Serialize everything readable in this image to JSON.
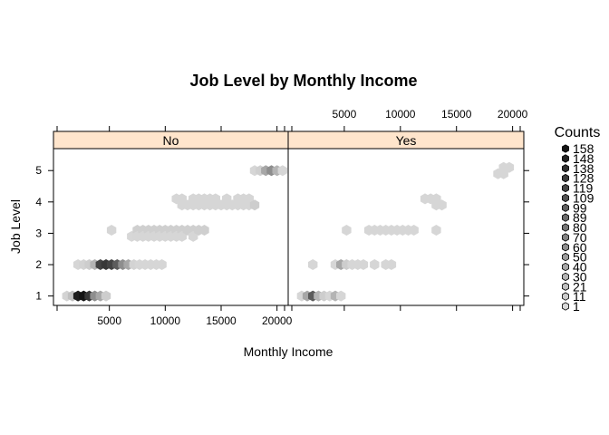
{
  "chart_data": {
    "type": "hexbin",
    "title": "Job Level by Monthly Income",
    "xlabel": "Monthly Income",
    "ylabel": "Job Level",
    "xlim": [
      0,
      21000
    ],
    "ylim": [
      0.7,
      5.7
    ],
    "x_ticks": [
      5000,
      10000,
      15000,
      20000
    ],
    "x_tick_labels": [
      "5000",
      "10000",
      "15000",
      "20000"
    ],
    "y_ticks": [
      1,
      2,
      3,
      4,
      5
    ],
    "y_tick_labels": [
      "1",
      "2",
      "3",
      "4",
      "5"
    ],
    "colors": {
      "strip_bg": "#ffe5cc",
      "strip_border": "#000000",
      "panel_border": "#000000"
    },
    "panels": [
      {
        "strip": "No",
        "cells": [
          {
            "x": 1200,
            "y": 1,
            "count": 5
          },
          {
            "x": 1700,
            "y": 1,
            "count": 20
          },
          {
            "x": 2200,
            "y": 1,
            "count": 150
          },
          {
            "x": 2700,
            "y": 1,
            "count": 158
          },
          {
            "x": 3200,
            "y": 1,
            "count": 130
          },
          {
            "x": 3700,
            "y": 1,
            "count": 60
          },
          {
            "x": 4200,
            "y": 1,
            "count": 40
          },
          {
            "x": 4700,
            "y": 1,
            "count": 10
          },
          {
            "x": 2200,
            "y": 2,
            "count": 3
          },
          {
            "x": 2700,
            "y": 2,
            "count": 5
          },
          {
            "x": 3200,
            "y": 2,
            "count": 10
          },
          {
            "x": 3700,
            "y": 2,
            "count": 30
          },
          {
            "x": 4200,
            "y": 2,
            "count": 120
          },
          {
            "x": 4700,
            "y": 2,
            "count": 130
          },
          {
            "x": 5200,
            "y": 2,
            "count": 120
          },
          {
            "x": 5700,
            "y": 2,
            "count": 100
          },
          {
            "x": 6200,
            "y": 2,
            "count": 60
          },
          {
            "x": 6700,
            "y": 2,
            "count": 40
          },
          {
            "x": 7200,
            "y": 2,
            "count": 5
          },
          {
            "x": 7700,
            "y": 2,
            "count": 3
          },
          {
            "x": 8200,
            "y": 2,
            "count": 3
          },
          {
            "x": 8700,
            "y": 2,
            "count": 3
          },
          {
            "x": 9200,
            "y": 2,
            "count": 3
          },
          {
            "x": 9700,
            "y": 2,
            "count": 3
          },
          {
            "x": 5200,
            "y": 3.1,
            "count": 3
          },
          {
            "x": 7000,
            "y": 2.9,
            "count": 2
          },
          {
            "x": 7500,
            "y": 3.1,
            "count": 8
          },
          {
            "x": 7500,
            "y": 2.9,
            "count": 3
          },
          {
            "x": 8000,
            "y": 3.1,
            "count": 8
          },
          {
            "x": 8000,
            "y": 2.9,
            "count": 3
          },
          {
            "x": 8500,
            "y": 3.1,
            "count": 8
          },
          {
            "x": 8500,
            "y": 2.9,
            "count": 3
          },
          {
            "x": 9000,
            "y": 3.1,
            "count": 8
          },
          {
            "x": 9000,
            "y": 2.9,
            "count": 3
          },
          {
            "x": 9500,
            "y": 3.1,
            "count": 8
          },
          {
            "x": 9500,
            "y": 2.9,
            "count": 3
          },
          {
            "x": 10000,
            "y": 3.1,
            "count": 8
          },
          {
            "x": 10000,
            "y": 2.9,
            "count": 3
          },
          {
            "x": 10500,
            "y": 3.1,
            "count": 8
          },
          {
            "x": 10500,
            "y": 2.9,
            "count": 3
          },
          {
            "x": 11000,
            "y": 3.1,
            "count": 8
          },
          {
            "x": 11000,
            "y": 2.9,
            "count": 3
          },
          {
            "x": 11500,
            "y": 3.1,
            "count": 8
          },
          {
            "x": 11500,
            "y": 2.9,
            "count": 3
          },
          {
            "x": 12000,
            "y": 3.1,
            "count": 8
          },
          {
            "x": 12500,
            "y": 3.1,
            "count": 8
          },
          {
            "x": 12500,
            "y": 2.9,
            "count": 3
          },
          {
            "x": 13000,
            "y": 3.1,
            "count": 8
          },
          {
            "x": 13500,
            "y": 3.1,
            "count": 8
          },
          {
            "x": 11000,
            "y": 4.1,
            "count": 3
          },
          {
            "x": 11500,
            "y": 4.1,
            "count": 3
          },
          {
            "x": 11500,
            "y": 3.9,
            "count": 3
          },
          {
            "x": 12000,
            "y": 3.9,
            "count": 3
          },
          {
            "x": 12500,
            "y": 4.1,
            "count": 3
          },
          {
            "x": 12500,
            "y": 3.9,
            "count": 3
          },
          {
            "x": 13000,
            "y": 4.1,
            "count": 3
          },
          {
            "x": 13000,
            "y": 3.9,
            "count": 3
          },
          {
            "x": 13500,
            "y": 4.1,
            "count": 3
          },
          {
            "x": 13500,
            "y": 3.9,
            "count": 3
          },
          {
            "x": 14000,
            "y": 4.1,
            "count": 3
          },
          {
            "x": 14000,
            "y": 3.9,
            "count": 3
          },
          {
            "x": 14500,
            "y": 4.1,
            "count": 3
          },
          {
            "x": 14500,
            "y": 3.9,
            "count": 3
          },
          {
            "x": 15000,
            "y": 3.9,
            "count": 3
          },
          {
            "x": 15500,
            "y": 4.1,
            "count": 3
          },
          {
            "x": 15500,
            "y": 3.9,
            "count": 3
          },
          {
            "x": 16000,
            "y": 3.9,
            "count": 3
          },
          {
            "x": 16500,
            "y": 4.1,
            "count": 3
          },
          {
            "x": 16500,
            "y": 3.9,
            "count": 3
          },
          {
            "x": 17000,
            "y": 4.1,
            "count": 3
          },
          {
            "x": 17000,
            "y": 3.9,
            "count": 3
          },
          {
            "x": 17500,
            "y": 4.1,
            "count": 3
          },
          {
            "x": 17500,
            "y": 3.9,
            "count": 3
          },
          {
            "x": 18000,
            "y": 3.9,
            "count": 10
          },
          {
            "x": 18000,
            "y": 5,
            "count": 3
          },
          {
            "x": 18500,
            "y": 5,
            "count": 8
          },
          {
            "x": 19000,
            "y": 5,
            "count": 40
          },
          {
            "x": 19500,
            "y": 5,
            "count": 60
          },
          {
            "x": 20000,
            "y": 5,
            "count": 30
          },
          {
            "x": 20500,
            "y": 5,
            "count": 3
          }
        ]
      },
      {
        "strip": "Yes",
        "cells": [
          {
            "x": 1200,
            "y": 1,
            "count": 3
          },
          {
            "x": 1700,
            "y": 1,
            "count": 40
          },
          {
            "x": 2200,
            "y": 1,
            "count": 100
          },
          {
            "x": 2700,
            "y": 1,
            "count": 30
          },
          {
            "x": 3200,
            "y": 1,
            "count": 10
          },
          {
            "x": 3700,
            "y": 1,
            "count": 3
          },
          {
            "x": 4200,
            "y": 1,
            "count": 30
          },
          {
            "x": 4700,
            "y": 1,
            "count": 3
          },
          {
            "x": 2200,
            "y": 2,
            "count": 3
          },
          {
            "x": 4200,
            "y": 2,
            "count": 3
          },
          {
            "x": 4700,
            "y": 2,
            "count": 40
          },
          {
            "x": 5200,
            "y": 2,
            "count": 10
          },
          {
            "x": 5700,
            "y": 2,
            "count": 3
          },
          {
            "x": 6200,
            "y": 2,
            "count": 3
          },
          {
            "x": 6700,
            "y": 2,
            "count": 3
          },
          {
            "x": 7700,
            "y": 2,
            "count": 3
          },
          {
            "x": 8700,
            "y": 2,
            "count": 3
          },
          {
            "x": 9200,
            "y": 2,
            "count": 3
          },
          {
            "x": 5200,
            "y": 3.1,
            "count": 3
          },
          {
            "x": 7200,
            "y": 3.1,
            "count": 3
          },
          {
            "x": 7700,
            "y": 3.1,
            "count": 3
          },
          {
            "x": 8200,
            "y": 3.1,
            "count": 3
          },
          {
            "x": 8700,
            "y": 3.1,
            "count": 3
          },
          {
            "x": 9200,
            "y": 3.1,
            "count": 3
          },
          {
            "x": 9700,
            "y": 3.1,
            "count": 3
          },
          {
            "x": 10200,
            "y": 3.1,
            "count": 3
          },
          {
            "x": 10700,
            "y": 3.1,
            "count": 3
          },
          {
            "x": 11200,
            "y": 3.1,
            "count": 3
          },
          {
            "x": 13200,
            "y": 3.1,
            "count": 3
          },
          {
            "x": 12200,
            "y": 4.1,
            "count": 3
          },
          {
            "x": 12700,
            "y": 4.1,
            "count": 3
          },
          {
            "x": 13200,
            "y": 4.1,
            "count": 3
          },
          {
            "x": 13200,
            "y": 3.9,
            "count": 3
          },
          {
            "x": 13700,
            "y": 3.9,
            "count": 3
          },
          {
            "x": 18700,
            "y": 4.9,
            "count": 3
          },
          {
            "x": 19200,
            "y": 4.9,
            "count": 3
          },
          {
            "x": 19200,
            "y": 5.1,
            "count": 3
          },
          {
            "x": 19700,
            "y": 5.1,
            "count": 3
          }
        ]
      }
    ],
    "legend": {
      "title": "Counts",
      "placement": "right",
      "labels": [
        "158",
        "148",
        "138",
        "128",
        "119",
        "109",
        "99",
        "89",
        "80",
        "70",
        "60",
        "50",
        "40",
        "30",
        "21",
        "11",
        "1"
      ]
    }
  }
}
